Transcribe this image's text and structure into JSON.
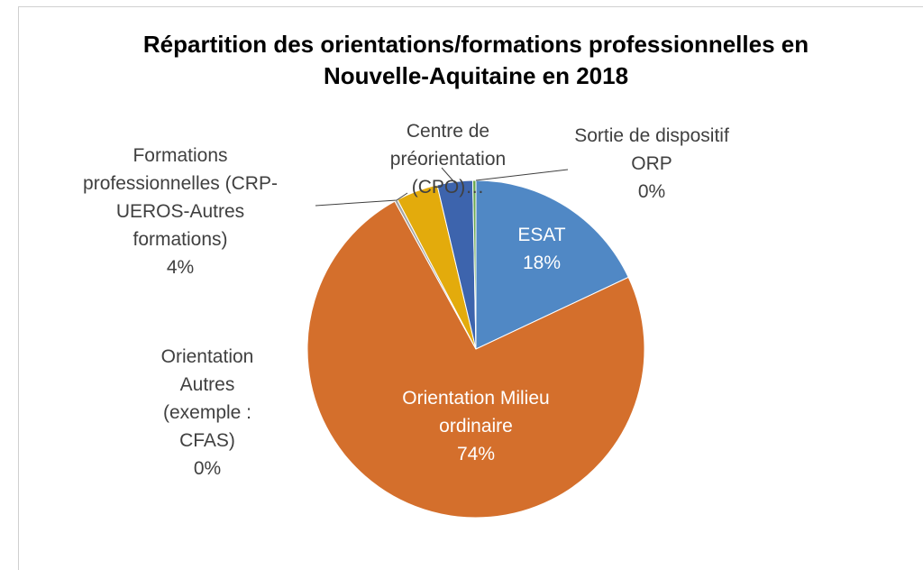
{
  "chart_data": {
    "type": "pie",
    "title": "Répartition des orientations/formations professionnelles en Nouvelle-Aquitaine en 2018",
    "categories": [
      "ESAT",
      "Orientation Milieu ordinaire",
      "Orientation Autres (exemple : CFAS)",
      "Formations professionnelles (CRP-UEROS-Autres formations)",
      "Centre de préorientation (CPO)…",
      "Sortie de dispositif ORP"
    ],
    "values": [
      18,
      74,
      0.3,
      4,
      3.4,
      0.3
    ],
    "value_labels": [
      "18%",
      "74%",
      "0%",
      "4%",
      null,
      "0%"
    ],
    "colors": [
      "#5088c5",
      "#d46f2c",
      "#a5a5a5",
      "#e3ab0c",
      "#3d64ad",
      "#6aa84f"
    ]
  }
}
